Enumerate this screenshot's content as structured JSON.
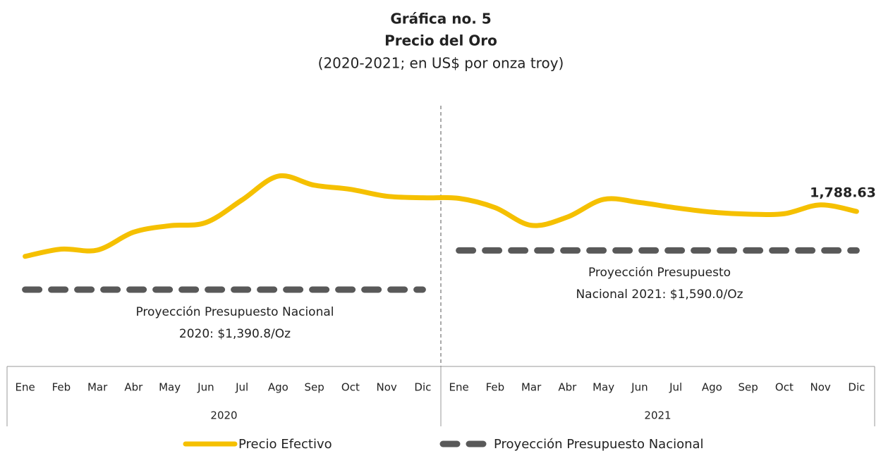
{
  "chart_data": {
    "type": "line",
    "title": "Gráfica no. 5",
    "subtitle": "Precio del Oro",
    "subtitle2": "(2020-2021; en US$ por onza troy)",
    "categories": [
      "Ene",
      "Feb",
      "Mar",
      "Abr",
      "May",
      "Jun",
      "Jul",
      "Ago",
      "Sep",
      "Oct",
      "Nov",
      "Dic",
      "Ene",
      "Feb",
      "Mar",
      "Abr",
      "May",
      "Jun",
      "Jul",
      "Ago",
      "Sep",
      "Oct",
      "Nov",
      "Dic"
    ],
    "x_groups": [
      "2020",
      "2021"
    ],
    "series": [
      {
        "name": "Precio Efectivo",
        "color": "#f5c000",
        "values": [
          1560,
          1597,
          1592,
          1683,
          1716,
          1732,
          1847,
          1968,
          1922,
          1901,
          1866,
          1858,
          1855,
          1808,
          1718,
          1760,
          1850,
          1834,
          1807,
          1785,
          1775,
          1777,
          1822,
          1788.63
        ],
        "value_labels": [
          null,
          null,
          null,
          null,
          null,
          null,
          null,
          null,
          null,
          null,
          null,
          null,
          null,
          null,
          null,
          null,
          null,
          null,
          null,
          null,
          null,
          null,
          null,
          "1,788.63"
        ]
      },
      {
        "name": "Proyección Presupuesto Nacional",
        "color": "#595959",
        "values": [
          1390.8,
          1390.8,
          1390.8,
          1390.8,
          1390.8,
          1390.8,
          1390.8,
          1390.8,
          1390.8,
          1390.8,
          1390.8,
          1390.8,
          1590.0,
          1590.0,
          1590.0,
          1590.0,
          1590.0,
          1590.0,
          1590.0,
          1590.0,
          1590.0,
          1590.0,
          1590.0,
          1590.0
        ]
      }
    ],
    "annotations": [
      [
        "Proyección Presupuesto Nacional",
        "2020: $1,390.8/Oz"
      ],
      [
        "Proyección Presupuesto",
        "Nacional 2021: $1,590.0/Oz"
      ]
    ],
    "legend": "bottom"
  }
}
